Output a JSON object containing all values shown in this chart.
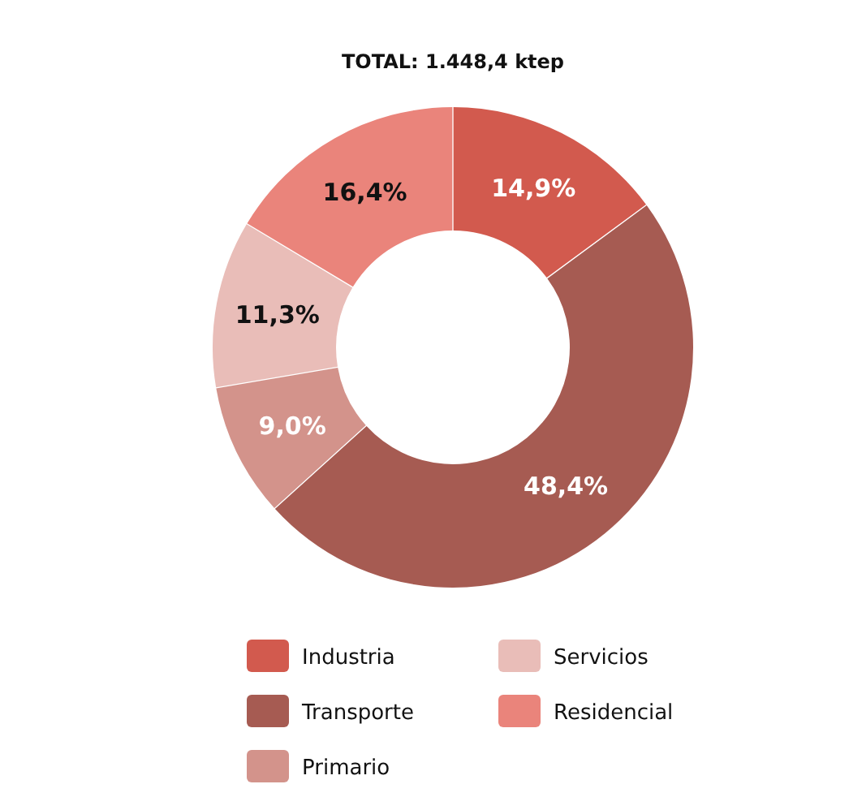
{
  "chart_data": {
    "type": "donut",
    "title": "TOTAL: 1.448,4 ktep",
    "categories": [
      "Industria",
      "Transporte",
      "Primario",
      "Servicios",
      "Residencial"
    ],
    "values": [
      14.9,
      48.4,
      9.0,
      11.3,
      16.4
    ],
    "value_labels": [
      "14,9%",
      "48,4%",
      "9,0%",
      "11,3%",
      "16,4%"
    ],
    "colors": [
      "#d25a4e",
      "#a65b52",
      "#d3938b",
      "#e9bdb8",
      "#ea847b"
    ],
    "legend": "bottom"
  }
}
